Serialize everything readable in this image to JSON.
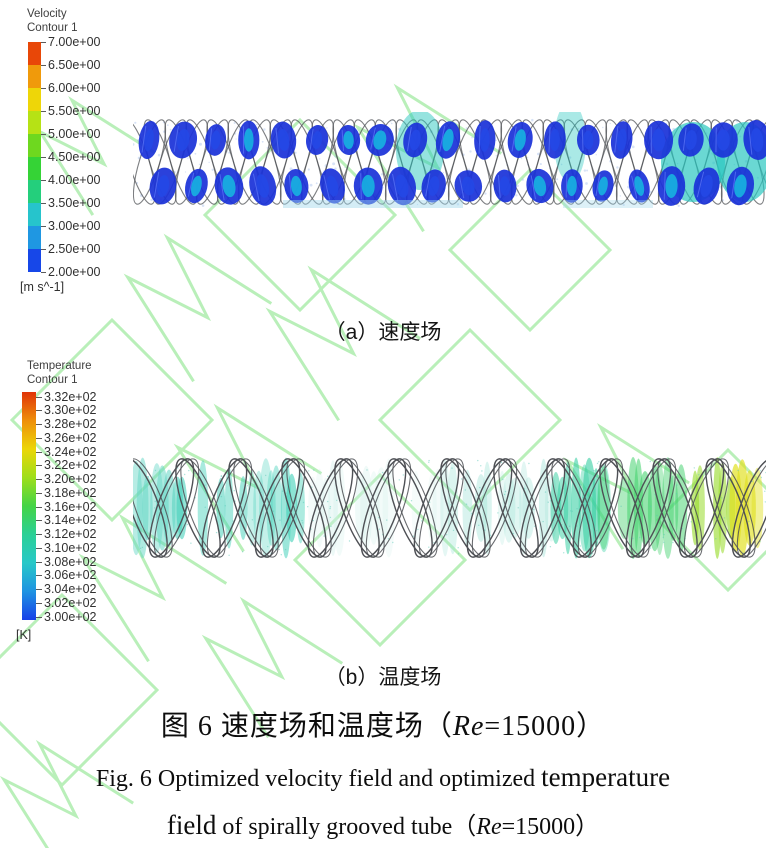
{
  "page": {
    "background": "#ffffff",
    "watermark_color": "#b9efb9"
  },
  "velocity_legend": {
    "title": "Velocity",
    "subtitle": "Contour 1",
    "unit": "[m s^-1]",
    "labels": [
      "7.00e+00",
      "6.50e+00",
      "6.00e+00",
      "5.50e+00",
      "5.00e+00",
      "4.50e+00",
      "4.00e+00",
      "3.50e+00",
      "3.00e+00",
      "2.50e+00",
      "2.00e+00"
    ],
    "colors": [
      "#e84708",
      "#f09a0b",
      "#eed608",
      "#b6e215",
      "#6ed81f",
      "#35d336",
      "#24cf7c",
      "#26c4cc",
      "#1f97e2",
      "#1747e8"
    ]
  },
  "temperature_legend": {
    "title": "Temperature",
    "subtitle": "Contour 1",
    "unit": "[K]",
    "labels": [
      "3.32e+02",
      "3.30e+02",
      "3.28e+02",
      "3.26e+02",
      "3.24e+02",
      "3.22e+02",
      "3.20e+02",
      "3.18e+02",
      "3.16e+02",
      "3.14e+02",
      "3.12e+02",
      "3.10e+02",
      "3.08e+02",
      "3.06e+02",
      "3.04e+02",
      "3.02e+02",
      "3.00e+02"
    ],
    "colors": [
      "#e03408",
      "#ee8f0a",
      "#ecd607",
      "#9ede1a",
      "#44d446",
      "#2bd096",
      "#28c8c8",
      "#1f93e2",
      "#1740e8"
    ]
  },
  "captions": {
    "sub_a": "（a）速度场",
    "sub_b": "（b）温度场",
    "zh_prefix": "图 6 速度场和温度场（",
    "zh_re": "Re",
    "zh_suffix": "=15000）",
    "en_line1_normal": "Fig. 6 Optimized velocity field and optimized ",
    "en_line1_big": "temperature",
    "en_line2_big": "field",
    "en_line2_normal": " of spirally grooved tube（",
    "en_re": "Re",
    "en_suffix": "=15000）"
  }
}
